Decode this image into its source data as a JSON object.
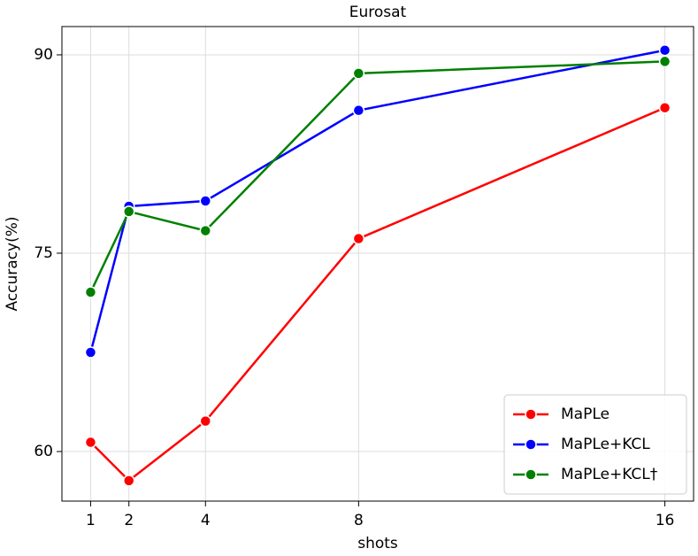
{
  "chart_data": {
    "type": "line",
    "title": "Eurosat",
    "x_label": "shots",
    "y_label": "Accuracy(%)",
    "x": [
      1,
      2,
      4,
      8,
      16
    ],
    "series": [
      {
        "name": "MaPLe",
        "color": "#ff0000",
        "values": [
          60.7,
          57.8,
          62.3,
          76.1,
          86.0
        ]
      },
      {
        "name": "MaPLe+KCL",
        "color": "#0000ff",
        "values": [
          67.5,
          78.55,
          78.95,
          85.8,
          90.35
        ]
      },
      {
        "name": "MaPLe+KCL†",
        "color": "#008000",
        "values": [
          72.05,
          78.15,
          76.7,
          88.6,
          89.5
        ]
      }
    ],
    "xlim": [
      0.25,
      16.75
    ],
    "xticks": [
      1,
      2,
      4,
      8,
      16
    ],
    "ylim": [
      56.25,
      92.14
    ],
    "yticks": [
      60,
      75,
      90
    ],
    "grid": true,
    "legend": "lower right"
  }
}
